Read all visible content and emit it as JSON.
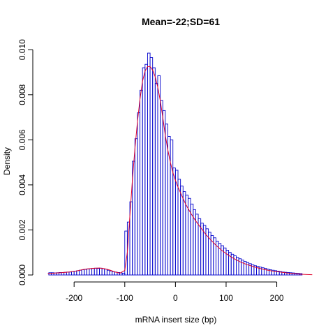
{
  "chart_data": {
    "type": "bar",
    "title": "Mean=-22;SD=61",
    "xlabel": "mRNA insert size (bp)",
    "ylabel": "Density",
    "xlim": [
      -265,
      275
    ],
    "ylim": [
      0,
      0.0101
    ],
    "x_ticks": [
      -200,
      -100,
      0,
      100,
      200
    ],
    "x_tick_labels": [
      "-200",
      "-100",
      "0",
      "100",
      "200"
    ],
    "y_ticks": [
      0,
      0.002,
      0.004,
      0.006,
      0.008,
      0.01
    ],
    "y_tick_labels": [
      "0.000",
      "0.002",
      "0.004",
      "0.006",
      "0.008",
      "0.010"
    ],
    "grid": false,
    "histogram": {
      "bin_width": 5,
      "bin_starts": [
        -250,
        -245,
        -240,
        -235,
        -230,
        -225,
        -220,
        -215,
        -210,
        -205,
        -200,
        -195,
        -190,
        -185,
        -180,
        -175,
        -170,
        -165,
        -160,
        -155,
        -150,
        -145,
        -140,
        -135,
        -130,
        -125,
        -120,
        -115,
        -110,
        -105,
        -100,
        -95,
        -90,
        -85,
        -80,
        -75,
        -70,
        -65,
        -60,
        -55,
        -50,
        -45,
        -40,
        -35,
        -30,
        -25,
        -20,
        -15,
        -10,
        -5,
        0,
        5,
        10,
        15,
        20,
        25,
        30,
        35,
        40,
        45,
        50,
        55,
        60,
        65,
        70,
        75,
        80,
        85,
        90,
        95,
        100,
        105,
        110,
        115,
        120,
        125,
        130,
        135,
        140,
        145,
        150,
        155,
        160,
        165,
        170,
        175,
        180,
        185,
        190,
        195,
        200,
        205,
        210,
        215,
        220,
        225,
        230,
        235,
        240,
        245
      ],
      "densities": [
        0.0001,
        0.0001,
        9e-05,
        0.0001,
        0.00011,
        0.00011,
        0.00012,
        0.00013,
        0.00013,
        0.00015,
        0.00017,
        0.00019,
        0.00021,
        0.00023,
        0.00025,
        0.00027,
        0.00028,
        0.00029,
        0.0003,
        0.00029,
        0.0003,
        0.00028,
        0.00026,
        0.00021,
        0.00018,
        0.00015,
        0.00013,
        0.00011,
        9e-05,
        8e-05,
        0.00195,
        0.00235,
        0.00325,
        0.00505,
        0.00605,
        0.0072,
        0.0082,
        0.0092,
        0.00935,
        0.00985,
        0.00965,
        0.0092,
        0.0085,
        0.00885,
        0.00775,
        0.0073,
        0.0067,
        0.00615,
        0.006,
        0.00475,
        0.00465,
        0.00425,
        0.00395,
        0.0037,
        0.00355,
        0.0034,
        0.00315,
        0.0029,
        0.0027,
        0.0025,
        0.0023,
        0.0022,
        0.00205,
        0.0019,
        0.00175,
        0.00165,
        0.0015,
        0.0014,
        0.0013,
        0.0012,
        0.0011,
        0.001,
        0.00092,
        0.00085,
        0.00078,
        0.00072,
        0.00066,
        0.0006,
        0.00055,
        0.0005,
        0.00045,
        0.00041,
        0.00038,
        0.00035,
        0.00032,
        0.00029,
        0.00026,
        0.00023,
        0.00021,
        0.00019,
        0.00017,
        0.00015,
        0.00013,
        0.00012,
        0.00011,
        0.0001,
        9e-05,
        8e-05,
        7e-05,
        6e-05
      ]
    },
    "density_curve": {
      "x": [
        -252,
        -240,
        -225,
        -210,
        -195,
        -180,
        -170,
        -160,
        -150,
        -140,
        -130,
        -120,
        -110,
        -100,
        -95,
        -90,
        -85,
        -80,
        -75,
        -70,
        -65,
        -60,
        -55,
        -50,
        -45,
        -40,
        -35,
        -30,
        -25,
        -20,
        -15,
        -10,
        -5,
        0,
        5,
        10,
        20,
        30,
        40,
        50,
        60,
        70,
        80,
        90,
        100,
        110,
        120,
        130,
        140,
        150,
        160,
        170,
        180,
        190,
        200,
        210,
        220,
        230,
        240,
        250,
        260,
        270
      ],
      "y": [
        6e-05,
        8e-05,
        0.0001,
        0.00013,
        0.00018,
        0.00025,
        0.00028,
        0.0003,
        0.00031,
        0.00028,
        0.00022,
        0.00014,
        8e-05,
        0.0002,
        0.001,
        0.0026,
        0.0042,
        0.0056,
        0.0068,
        0.0078,
        0.0086,
        0.00905,
        0.00925,
        0.00925,
        0.0091,
        0.0088,
        0.00835,
        0.00775,
        0.007,
        0.0062,
        0.00555,
        0.005,
        0.00455,
        0.0042,
        0.0039,
        0.00365,
        0.00315,
        0.00275,
        0.0024,
        0.0021,
        0.0018,
        0.00155,
        0.00132,
        0.00112,
        0.00095,
        0.0008,
        0.00067,
        0.00056,
        0.00047,
        0.0004,
        0.00033,
        0.00027,
        0.00022,
        0.00018,
        0.00015,
        0.00012,
        9e-05,
        7e-05,
        5e-05,
        3e-05,
        2e-05,
        1e-05
      ]
    }
  },
  "colors": {
    "bars": "#0000cc",
    "density_line": "#e0002a",
    "axes": "#000000",
    "background": "#ffffff"
  }
}
